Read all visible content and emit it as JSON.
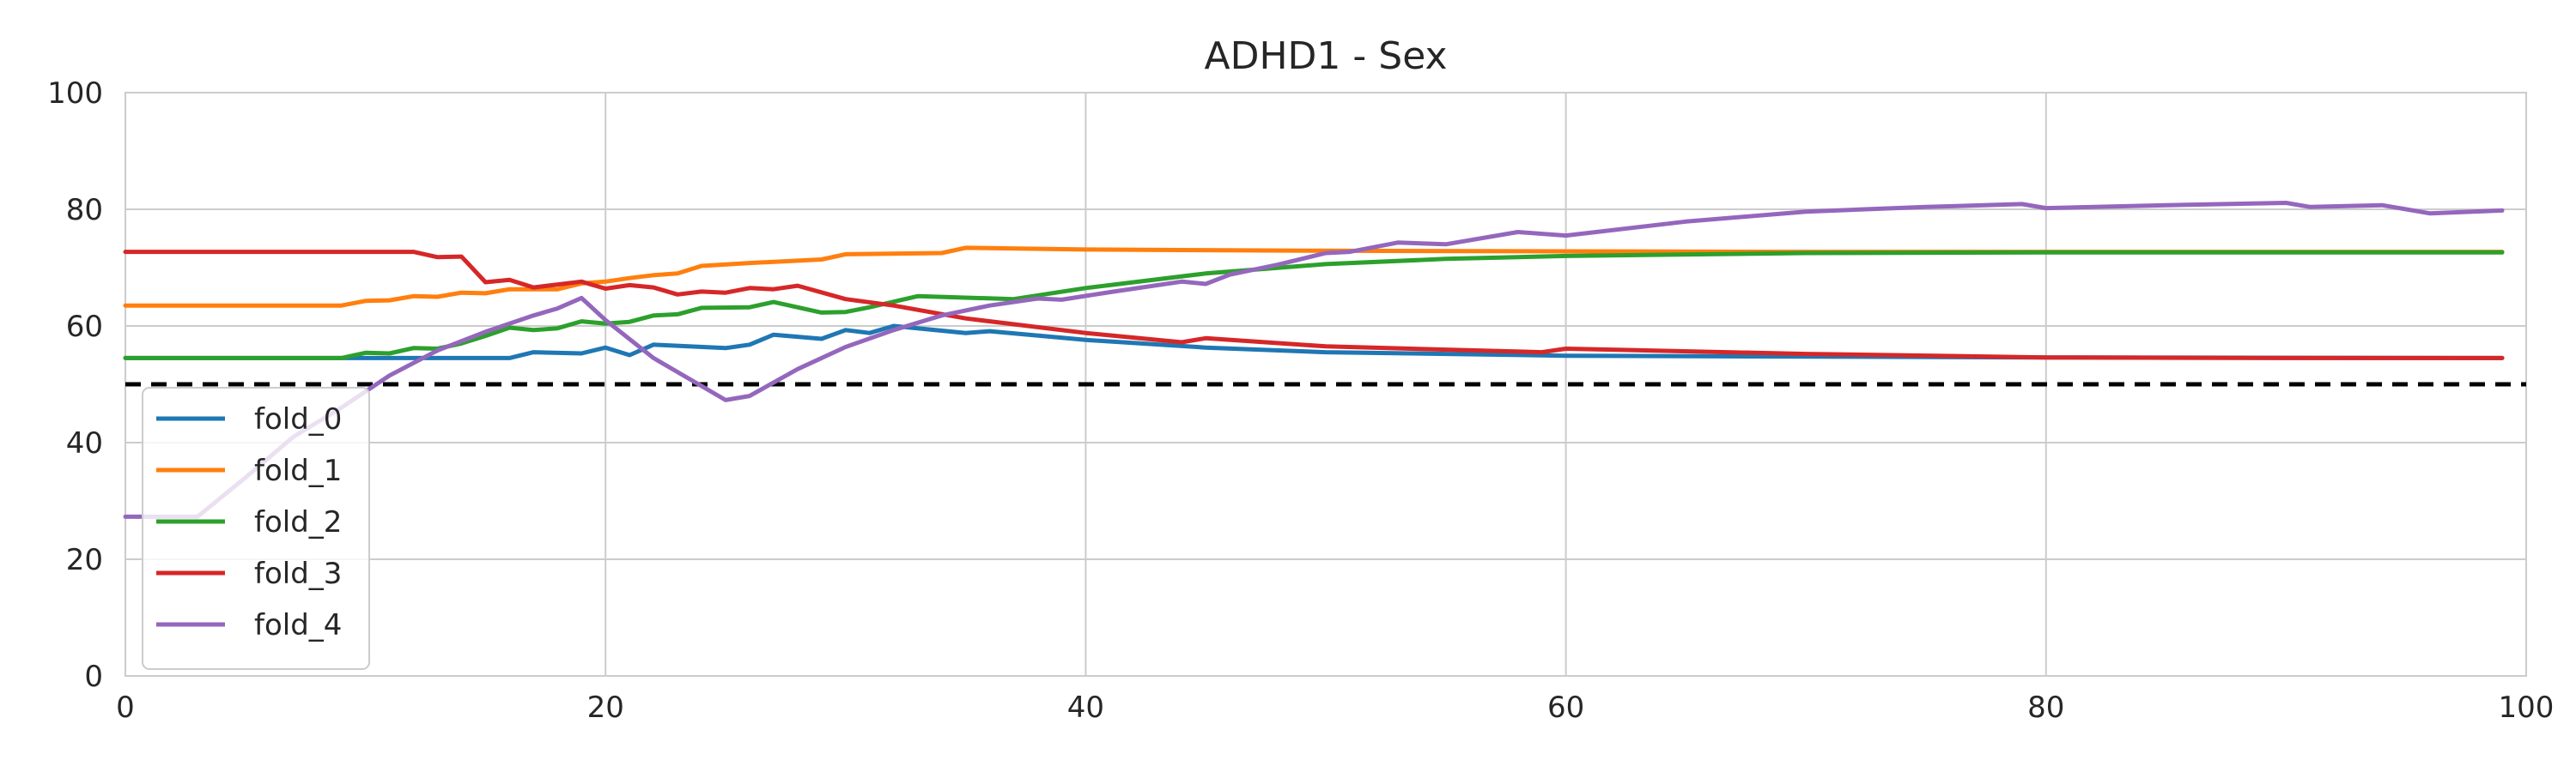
{
  "chart_data": {
    "type": "line",
    "title": "ADHD1 - Sex",
    "xlabel": "",
    "ylabel": "",
    "xlim": [
      0,
      100
    ],
    "ylim": [
      0,
      100
    ],
    "xticks": [
      0,
      20,
      40,
      60,
      80,
      100
    ],
    "yticks": [
      0,
      20,
      40,
      60,
      80,
      100
    ],
    "grid": true,
    "legend_position": "lower-left",
    "reference_line": {
      "y": 50,
      "style": "dashed",
      "color": "#000000"
    },
    "series": [
      {
        "name": "fold_0",
        "color": "#1f77b4",
        "points": [
          [
            0,
            54.5
          ],
          [
            15,
            54.5
          ],
          [
            16,
            54.5
          ],
          [
            17,
            55.5
          ],
          [
            19,
            55.3
          ],
          [
            20,
            56.3
          ],
          [
            21,
            55
          ],
          [
            22,
            56.8
          ],
          [
            25,
            56.2
          ],
          [
            26,
            56.8
          ],
          [
            27,
            58.5
          ],
          [
            29,
            57.8
          ],
          [
            30,
            59.3
          ],
          [
            31,
            58.8
          ],
          [
            32,
            60
          ],
          [
            35,
            58.8
          ],
          [
            36,
            59.1
          ],
          [
            40,
            57.6
          ],
          [
            45,
            56.3
          ],
          [
            50,
            55.5
          ],
          [
            60,
            54.9
          ],
          [
            80,
            54.6
          ],
          [
            99,
            54.5
          ]
        ]
      },
      {
        "name": "fold_1",
        "color": "#ff7f0e",
        "points": [
          [
            0,
            63.5
          ],
          [
            9,
            63.5
          ],
          [
            10,
            64.3
          ],
          [
            11,
            64.4
          ],
          [
            12,
            65.1
          ],
          [
            13,
            65
          ],
          [
            14,
            65.7
          ],
          [
            15,
            65.6
          ],
          [
            16,
            66.3
          ],
          [
            18,
            66.3
          ],
          [
            19,
            67.3
          ],
          [
            20,
            67.6
          ],
          [
            21,
            68.2
          ],
          [
            22,
            68.7
          ],
          [
            23,
            69
          ],
          [
            24,
            70.3
          ],
          [
            26,
            70.8
          ],
          [
            29,
            71.4
          ],
          [
            30,
            72.3
          ],
          [
            34,
            72.5
          ],
          [
            35,
            73.4
          ],
          [
            40,
            73.1
          ],
          [
            50,
            72.9
          ],
          [
            60,
            72.8
          ],
          [
            70,
            72.7
          ],
          [
            99,
            72.7
          ]
        ]
      },
      {
        "name": "fold_2",
        "color": "#2ca02c",
        "points": [
          [
            0,
            54.5
          ],
          [
            9,
            54.5
          ],
          [
            10,
            55.4
          ],
          [
            11,
            55.3
          ],
          [
            12,
            56.2
          ],
          [
            13,
            56.1
          ],
          [
            14,
            57
          ],
          [
            15,
            58.3
          ],
          [
            16,
            59.7
          ],
          [
            17,
            59.3
          ],
          [
            18,
            59.6
          ],
          [
            19,
            60.8
          ],
          [
            20,
            60.4
          ],
          [
            21,
            60.7
          ],
          [
            22,
            61.8
          ],
          [
            23,
            62
          ],
          [
            24,
            63.1
          ],
          [
            26,
            63.2
          ],
          [
            27,
            64.1
          ],
          [
            29,
            62.3
          ],
          [
            30,
            62.4
          ],
          [
            31,
            63.2
          ],
          [
            33,
            65.1
          ],
          [
            37,
            64.6
          ],
          [
            40,
            66.5
          ],
          [
            45,
            69
          ],
          [
            50,
            70.6
          ],
          [
            55,
            71.5
          ],
          [
            60,
            72
          ],
          [
            70,
            72.5
          ],
          [
            80,
            72.6
          ],
          [
            99,
            72.6
          ]
        ]
      },
      {
        "name": "fold_3",
        "color": "#d62728",
        "points": [
          [
            0,
            72.7
          ],
          [
            12,
            72.7
          ],
          [
            13,
            71.8
          ],
          [
            14,
            71.9
          ],
          [
            15,
            67.5
          ],
          [
            16,
            67.9
          ],
          [
            17,
            66.6
          ],
          [
            19,
            67.6
          ],
          [
            20,
            66.4
          ],
          [
            21,
            67
          ],
          [
            22,
            66.6
          ],
          [
            23,
            65.4
          ],
          [
            24,
            65.9
          ],
          [
            25,
            65.7
          ],
          [
            26,
            66.5
          ],
          [
            27,
            66.3
          ],
          [
            28,
            66.9
          ],
          [
            30,
            64.6
          ],
          [
            32,
            63.5
          ],
          [
            35,
            61.3
          ],
          [
            40,
            58.8
          ],
          [
            44,
            57.2
          ],
          [
            45,
            57.9
          ],
          [
            50,
            56.5
          ],
          [
            59,
            55.5
          ],
          [
            60,
            56.1
          ],
          [
            70,
            55.2
          ],
          [
            80,
            54.6
          ],
          [
            90,
            54.5
          ],
          [
            99,
            54.5
          ]
        ]
      },
      {
        "name": "fold_4",
        "color": "#9467bd",
        "points": [
          [
            0,
            27.3
          ],
          [
            3,
            27.3
          ],
          [
            5,
            34
          ],
          [
            7,
            41
          ],
          [
            9,
            46
          ],
          [
            11,
            51.5
          ],
          [
            13,
            55.8
          ],
          [
            15,
            59
          ],
          [
            17,
            61.8
          ],
          [
            18,
            63
          ],
          [
            19,
            64.8
          ],
          [
            20,
            61
          ],
          [
            22,
            54.5
          ],
          [
            24,
            49.7
          ],
          [
            25,
            47.3
          ],
          [
            26,
            48
          ],
          [
            28,
            52.6
          ],
          [
            30,
            56.4
          ],
          [
            32,
            59.3
          ],
          [
            34,
            61.8
          ],
          [
            36,
            63.5
          ],
          [
            38,
            64.7
          ],
          [
            39,
            64.5
          ],
          [
            41,
            65.8
          ],
          [
            44,
            67.6
          ],
          [
            45,
            67.2
          ],
          [
            46,
            68.8
          ],
          [
            48,
            70.5
          ],
          [
            50,
            72.5
          ],
          [
            51,
            72.7
          ],
          [
            53,
            74.3
          ],
          [
            55,
            74
          ],
          [
            58,
            76.1
          ],
          [
            60,
            75.5
          ],
          [
            65,
            77.9
          ],
          [
            70,
            79.6
          ],
          [
            75,
            80.4
          ],
          [
            79,
            80.9
          ],
          [
            80,
            80.2
          ],
          [
            85,
            80.7
          ],
          [
            90,
            81.1
          ],
          [
            91,
            80.4
          ],
          [
            94,
            80.7
          ],
          [
            96,
            79.3
          ],
          [
            99,
            79.8
          ]
        ]
      }
    ]
  }
}
